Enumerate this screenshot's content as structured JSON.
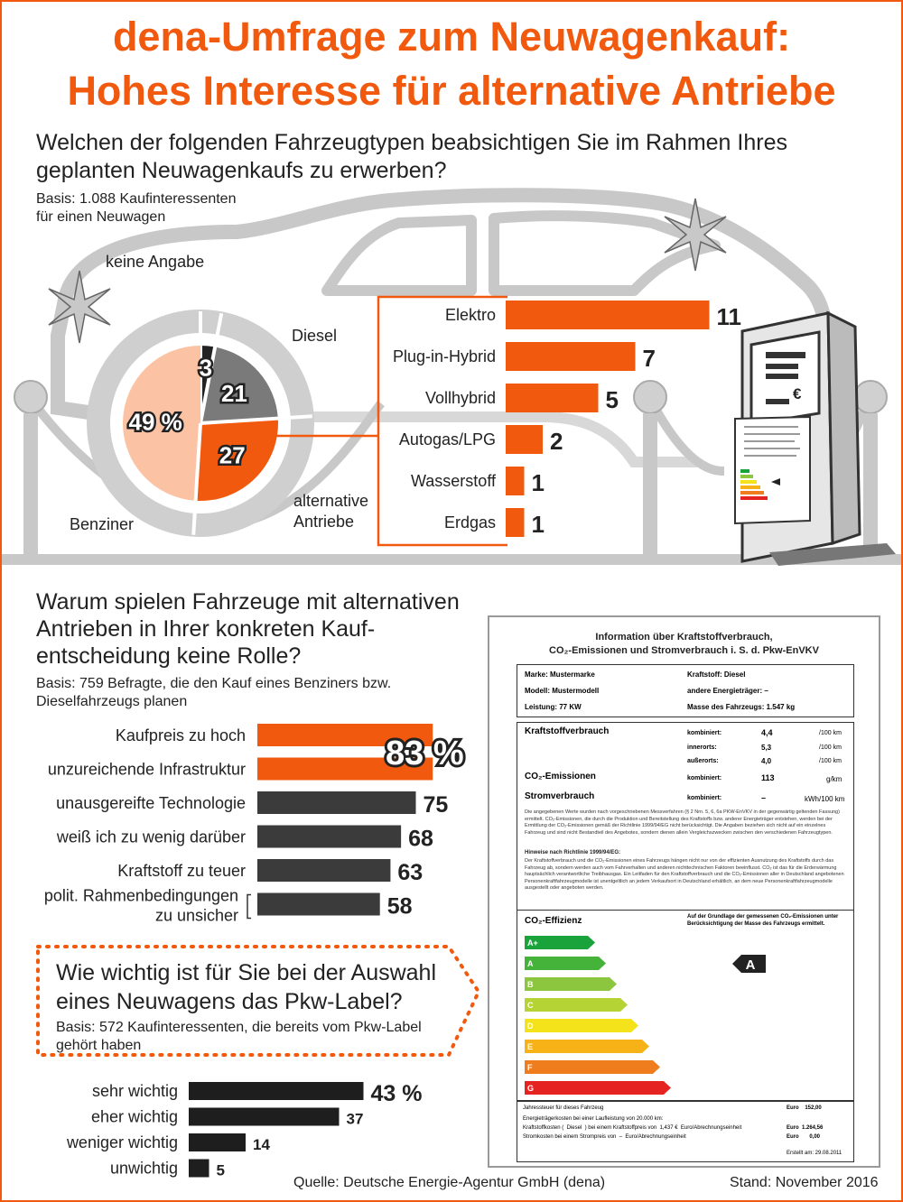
{
  "title": {
    "line1": "dena-Umfrage zum Neuwagenkauf:",
    "line2": "Hohes Interesse für alternative Antriebe"
  },
  "section1": {
    "question_line1": "Welchen der folgenden Fahrzeugtypen beabsichtigen Sie im Rahmen Ihres",
    "question_line2": "geplanten Neuwagenkaufs zu erwerben?",
    "basis_line1": "Basis: 1.088 Kaufinteressenten",
    "basis_line2": "für einen Neuwagen"
  },
  "section2": {
    "question_line1": "Warum spielen Fahrzeuge mit alternativen",
    "question_line2": "Antrieben in Ihrer konkreten Kauf-",
    "question_line3": "entscheidung keine Rolle?",
    "basis_line1": "Basis: 759 Befragte, die den Kauf eines Benziners bzw.",
    "basis_line2": "Dieselfahrzeugs planen"
  },
  "section3": {
    "question_line1": "Wie wichtig ist für Sie bei der Auswahl",
    "question_line2": "eines Neuwagens das Pkw-Label?",
    "basis_line1": "Basis: 572 Kaufinteressenten, die bereits vom Pkw-Label",
    "basis_line2": "gehört haben"
  },
  "chart_data": [
    {
      "type": "pie",
      "title": "Welchen der folgenden Fahrzeugtypen beabsichtigen Sie im Rahmen Ihres geplanten Neuwagenkaufs zu erwerben?",
      "unit": "%",
      "slices": [
        {
          "label": "keine Angabe",
          "value": 3,
          "display": "3",
          "color": "#222222"
        },
        {
          "label": "Diesel",
          "value": 21,
          "display": "21",
          "color": "#7a7a7a"
        },
        {
          "label": "alternative Antriebe",
          "value": 27,
          "display": "27",
          "color": "#f15a0e"
        },
        {
          "label": "Benziner",
          "value": 49,
          "display": "49 %",
          "color": "#fbc3a4"
        }
      ],
      "ring_labels": {
        "keine_angabe": "keine Angabe",
        "diesel": "Diesel",
        "alt_line1": "alternative",
        "alt_line2": "Antriebe",
        "benziner": "Benziner"
      }
    },
    {
      "type": "bar",
      "title": "alternative Antriebe",
      "categories": [
        "Elektro",
        "Plug-in-Hybrid",
        "Vollhybrid",
        "Autogas/LPG",
        "Wasserstoff",
        "Erdgas"
      ],
      "values": [
        11,
        7,
        5,
        2,
        1,
        1
      ],
      "color": "#f15a0e"
    },
    {
      "type": "bar",
      "title": "Warum spielen Fahrzeuge mit alternativen Antrieben in Ihrer konkreten Kaufentscheidung keine Rolle?",
      "categories": [
        "Kaufpreis zu hoch",
        "unzureichende Infrastruktur",
        "unausgereifte Technologie",
        "weiß ich zu wenig darüber",
        "Kraftstoff zu teuer",
        "polit. Rahmenbedingungen zu unsicher"
      ],
      "values": [
        83,
        83,
        75,
        68,
        63,
        58
      ],
      "combined_label": "83 %",
      "labels": [
        "75",
        "68",
        "63",
        "58"
      ],
      "category_last_line1": "polit. Rahmenbedingungen",
      "category_last_line2": "zu unsicher",
      "highlight_color": "#f15a0e",
      "color": "#3b3b3b"
    },
    {
      "type": "bar",
      "title": "Wie wichtig ist für Sie bei der Auswahl eines Neuwagens das Pkw-Label?",
      "categories": [
        "sehr wichtig",
        "eher wichtig",
        "weniger wichtig",
        "unwichtig"
      ],
      "values": [
        43,
        37,
        14,
        5
      ],
      "labels": [
        "43 %",
        "37",
        "14",
        "5"
      ],
      "color": "#1e1e1e"
    }
  ],
  "kiosk": {
    "price_label": "€"
  },
  "pkw_label": {
    "title_line1": "Information über Kraftstoffverbrauch,",
    "title_line2": "CO₂-Emissionen und Stromverbrauch i. S. d. Pkw-EnVKV",
    "marke": "Marke: Mustermarke",
    "kraftstoff": "Kraftstoff: Diesel",
    "modell": "Modell: Mustermodell",
    "energietraeger": "andere Energieträger: –",
    "leistung": "Leistung: 77 KW",
    "masse": "Masse des Fahrzeugs: 1.547 kg",
    "verbrauch_header": "Kraftstoffverbrauch",
    "kombiniert": "kombiniert:",
    "innerorts": "innerorts:",
    "ausserorts": "außerorts:",
    "v_komb": "4,4",
    "v_inner": "5,3",
    "v_ausser": "4,0",
    "unit_l": "/100 km",
    "co2_header": "CO₂-Emissionen",
    "co2_val": "113",
    "co2_unit": "g/km",
    "strom_header": "Stromverbrauch",
    "strom_val": "–",
    "strom_unit": "kWh/100 km",
    "text1": "Die angegebenen Werte wurden nach vorgeschriebenen Messverfahren (§ 2 Nrn. 5, 6, 6a PKW-EnVKV in der gegenwärtig geltenden Fassung) ermittelt. CO₂-Emissionen, die durch die Produktion und Bereitstellung des Kraftstoffs bzw. anderer Energieträger entstehen, werden bei der Ermittlung der CO₂-Emissionen gemäß der Richtlinie 1999/94/EG nicht berücksichtigt. Die Angaben beziehen sich nicht auf ein einzelnes Fahrzeug und sind nicht Bestandteil des Angebotes, sondern dienen allein Vergleichszwecken zwischen den verschiedenen Fahrzeugtypen.",
    "hinweis_header": "Hinweise nach Richtlinie 1999/94/EG:",
    "text2": "Der Kraftstoffverbrauch und die CO₂-Emissionen eines Fahrzeugs hängen nicht nur von der effizienten Ausnutzung des Kraftstoffs durch das Fahrzeug ab, sondern werden auch vom Fahrverhalten und anderen nichttechnischen Faktoren beeinflusst. CO₂ ist das für die Erderwärmung hauptsächlich verantwortliche Treibhausgas. Ein Leitfaden für den Kraftstoffverbrauch und die CO₂-Emissionen aller in Deutschland angebotenen Personenkraftfahrzeugmodelle ist unentgeltlich an jedem Verkaufsort in Deutschland erhältlich, an dem neue Personenkraftfahrzeugmodelle ausgestellt oder angeboten werden.",
    "eff_header": "CO₂-Effizienz",
    "eff_note": "Auf der Grundlage der gemessenen CO₂-Emissionen unter Berücksichtigung der Masse des Fahrzeugs ermittelt.",
    "classes": [
      "A+",
      "A",
      "B",
      "C",
      "D",
      "E",
      "F",
      "G"
    ],
    "class_colors": [
      "#1aa33a",
      "#45b23a",
      "#8cc63f",
      "#b5d334",
      "#f4e21b",
      "#f7b218",
      "#ef7d1d",
      "#e52421"
    ],
    "rating": "A",
    "steuer": "Jahressteuer für dieses Fahrzeug",
    "steuer_val": "Euro    152,00",
    "energiekosten": "Energieträgerkosten bei einer Laufleistung von 20.000 km:",
    "kraftstoffkosten": "Kraftstoffkosten (  Diesel  ) bei einem Kraftstoffpreis von  1,437 €  Euro/Abrechnungseinheit",
    "kraftstoff_val": "Euro  1.264,56",
    "stromkosten": "Stromkosten bei einem Strompreis von  –  Euro/Abrechnungseinheit",
    "strom_cost_val": "Euro       0,00",
    "erstellt": "Erstellt am: 29.08.2011"
  },
  "footer": {
    "source": "Quelle: Deutsche Energie-Agentur GmbH (dena)",
    "date": "Stand: November 2016"
  }
}
